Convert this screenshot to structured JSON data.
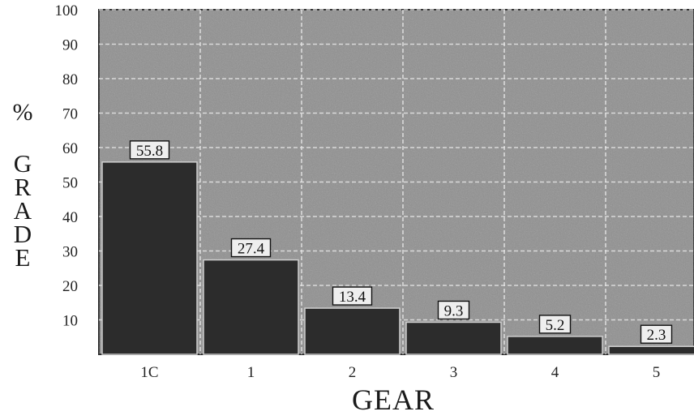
{
  "chart_data": {
    "type": "bar",
    "categories": [
      "1C",
      "1",
      "2",
      "3",
      "4",
      "5"
    ],
    "values": [
      55.8,
      27.4,
      13.4,
      9.3,
      5.2,
      2.3
    ],
    "data_labels": [
      "55.8",
      "27.4",
      "13.4",
      "9.3",
      "5.2",
      "2.3"
    ],
    "xlabel": "GEAR",
    "ylabel_unit": "%",
    "ylabel": "GRADE",
    "ylim": [
      0,
      100
    ],
    "yticks": [
      10,
      20,
      30,
      40,
      50,
      60,
      70,
      80,
      90,
      100
    ],
    "ytick_labels": [
      "10",
      "20",
      "30",
      "40",
      "50",
      "60",
      "70",
      "80",
      "90",
      "100"
    ],
    "grid": true,
    "colors": {
      "plot_background": "#8f8f8f",
      "bar_fill": "#2c2c2c",
      "grid": "#e6e6e6",
      "label_box": "#eeeeee"
    }
  }
}
